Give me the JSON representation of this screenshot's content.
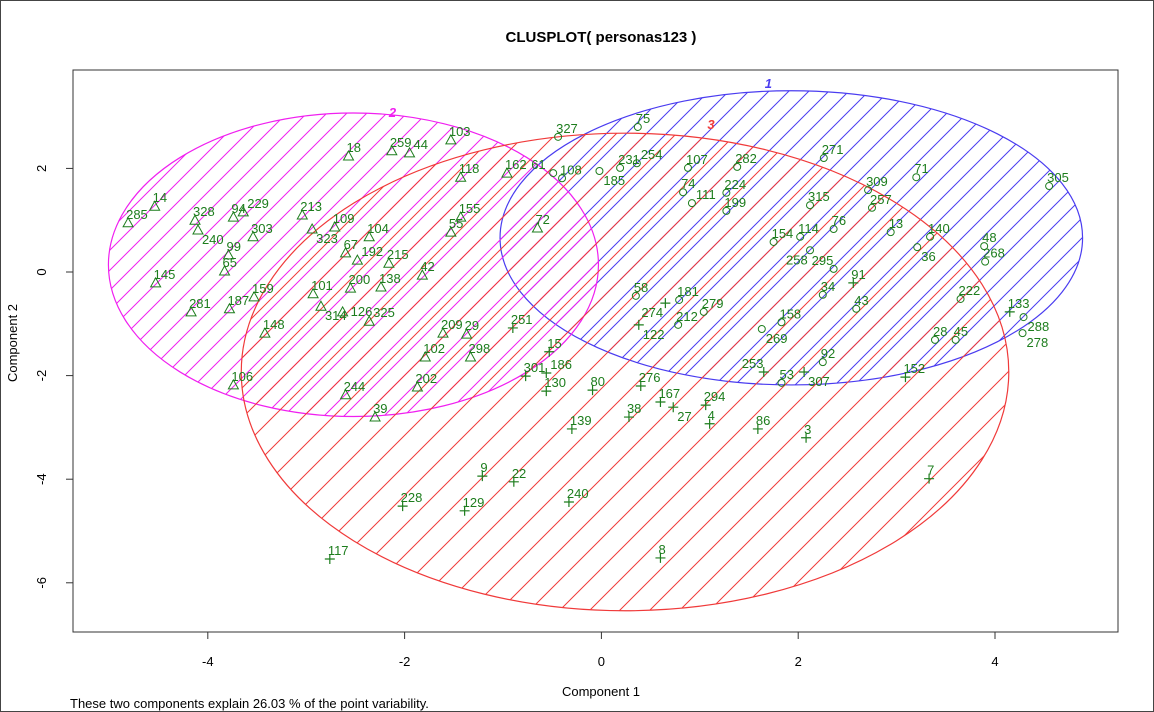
{
  "chart_data": {
    "type": "scatter",
    "title": "CLUSPLOT( personas123 )",
    "xlabel": "Component 1",
    "ylabel": "Component 2",
    "xlim": [
      -5.37,
      5.25
    ],
    "ylim": [
      -6.95,
      3.9
    ],
    "xticks": [
      "-4",
      "-2",
      "0",
      "2",
      "4"
    ],
    "yticks": [
      "-6",
      "-4",
      "-2",
      "0",
      "2"
    ],
    "grid": false,
    "point_color": "#1d7d1d",
    "clusters": [
      {
        "id": "1",
        "color": "#4a3cf0",
        "marker": "circle",
        "ellipse": {
          "cx": 1.93,
          "cy": 0.66,
          "a": 2.96,
          "b": 2.84
        }
      },
      {
        "id": "2",
        "color": "#f020f0",
        "marker": "triangle",
        "ellipse": {
          "cx": -2.52,
          "cy": 0.14,
          "a": 2.49,
          "b": 2.93
        }
      },
      {
        "id": "3",
        "color": "#f03a3a",
        "marker": "plus",
        "ellipse": {
          "cx": 0.24,
          "cy": -1.93,
          "a": 3.9,
          "b": 4.61
        }
      }
    ],
    "points": [
      {
        "label": "285",
        "x": -4.81,
        "y": 0.95,
        "cluster": "2"
      },
      {
        "label": "14",
        "x": -4.54,
        "y": 1.27,
        "cluster": "2"
      },
      {
        "label": "328",
        "x": -4.13,
        "y": 1.0,
        "cluster": "2"
      },
      {
        "label": "240",
        "x": -4.1,
        "y": 0.81,
        "cluster": "2"
      },
      {
        "label": "94",
        "x": -3.74,
        "y": 1.06,
        "cluster": "2"
      },
      {
        "label": "229",
        "x": -3.64,
        "y": 1.16,
        "cluster": "2"
      },
      {
        "label": "303",
        "x": -3.54,
        "y": 0.68,
        "cluster": "2"
      },
      {
        "label": "99",
        "x": -3.79,
        "y": 0.33,
        "cluster": "2"
      },
      {
        "label": "65",
        "x": -3.83,
        "y": 0.02,
        "cluster": "2"
      },
      {
        "label": "213",
        "x": -3.04,
        "y": 1.1,
        "cluster": "2"
      },
      {
        "label": "323",
        "x": -2.94,
        "y": 0.83,
        "cluster": "2"
      },
      {
        "label": "109",
        "x": -2.71,
        "y": 0.87,
        "cluster": "2"
      },
      {
        "label": "18",
        "x": -2.57,
        "y": 2.24,
        "cluster": "2"
      },
      {
        "label": "259",
        "x": -2.13,
        "y": 2.34,
        "cluster": "2"
      },
      {
        "label": "44",
        "x": -1.95,
        "y": 2.3,
        "cluster": "2"
      },
      {
        "label": "103",
        "x": -1.53,
        "y": 2.55,
        "cluster": "2"
      },
      {
        "label": "104",
        "x": -2.36,
        "y": 0.68,
        "cluster": "2"
      },
      {
        "label": "67",
        "x": -2.6,
        "y": 0.37,
        "cluster": "2"
      },
      {
        "label": "192",
        "x": -2.48,
        "y": 0.23,
        "cluster": "2"
      },
      {
        "label": "215",
        "x": -2.16,
        "y": 0.17,
        "cluster": "2"
      },
      {
        "label": "145",
        "x": -4.53,
        "y": -0.21,
        "cluster": "2"
      },
      {
        "label": "281",
        "x": -4.17,
        "y": -0.77,
        "cluster": "2"
      },
      {
        "label": "187",
        "x": -3.78,
        "y": -0.71,
        "cluster": "2"
      },
      {
        "label": "159",
        "x": -3.53,
        "y": -0.48,
        "cluster": "2"
      },
      {
        "label": "148",
        "x": -3.42,
        "y": -1.18,
        "cluster": "2"
      },
      {
        "label": "106",
        "x": -3.74,
        "y": -2.18,
        "cluster": "2"
      },
      {
        "label": "101",
        "x": -2.93,
        "y": -0.42,
        "cluster": "2"
      },
      {
        "label": "314",
        "x": -2.85,
        "y": -0.66,
        "cluster": "2"
      },
      {
        "label": "200",
        "x": -2.55,
        "y": -0.31,
        "cluster": "2"
      },
      {
        "label": "126",
        "x": -2.63,
        "y": -0.77,
        "cluster": "2"
      },
      {
        "label": "138",
        "x": -2.24,
        "y": -0.29,
        "cluster": "2"
      },
      {
        "label": "325",
        "x": -2.36,
        "y": -0.95,
        "cluster": "2"
      },
      {
        "label": "244",
        "x": -2.6,
        "y": -2.37,
        "cluster": "2"
      },
      {
        "label": "39",
        "x": -2.3,
        "y": -2.8,
        "cluster": "2"
      },
      {
        "label": "162",
        "x": -0.96,
        "y": 1.91,
        "cluster": "2"
      },
      {
        "label": "118",
        "x": -1.43,
        "y": 1.83,
        "cluster": "2"
      },
      {
        "label": "155",
        "x": -1.43,
        "y": 1.06,
        "cluster": "2"
      },
      {
        "label": "55",
        "x": -1.53,
        "y": 0.77,
        "cluster": "2"
      },
      {
        "label": "72",
        "x": -0.65,
        "y": 0.85,
        "cluster": "2"
      },
      {
        "label": "42",
        "x": -1.82,
        "y": -0.06,
        "cluster": "2"
      },
      {
        "label": "102",
        "x": -1.79,
        "y": -1.64,
        "cluster": "2"
      },
      {
        "label": "298",
        "x": -1.33,
        "y": -1.64,
        "cluster": "2"
      },
      {
        "label": "202",
        "x": -1.87,
        "y": -2.22,
        "cluster": "2"
      },
      {
        "label": "209",
        "x": -1.61,
        "y": -1.18,
        "cluster": "2"
      },
      {
        "label": "29",
        "x": -1.37,
        "y": -1.2,
        "cluster": "2"
      },
      {
        "label": "327",
        "x": -0.44,
        "y": 2.61,
        "cluster": "1"
      },
      {
        "label": "75",
        "x": 0.37,
        "y": 2.8,
        "cluster": "1"
      },
      {
        "label": "231",
        "x": 0.19,
        "y": 2.01,
        "cluster": "1"
      },
      {
        "label": "185",
        "x": -0.02,
        "y": 1.95,
        "cluster": "1"
      },
      {
        "label": "254",
        "x": 0.36,
        "y": 2.1,
        "cluster": "1"
      },
      {
        "label": "107",
        "x": 0.88,
        "y": 2.01,
        "cluster": "1"
      },
      {
        "label": "74",
        "x": 0.83,
        "y": 1.54,
        "cluster": "1"
      },
      {
        "label": "111",
        "x": 0.92,
        "y": 1.33,
        "cluster": "1"
      },
      {
        "label": "108",
        "x": -0.4,
        "y": 1.81,
        "cluster": "1"
      },
      {
        "label": "61",
        "x": -0.49,
        "y": 1.91,
        "cluster": "1"
      },
      {
        "label": "58",
        "x": 0.35,
        "y": -0.46,
        "cluster": "1"
      },
      {
        "label": "181",
        "x": 0.79,
        "y": -0.54,
        "cluster": "1"
      },
      {
        "label": "212",
        "x": 0.78,
        "y": -1.02,
        "cluster": "1"
      },
      {
        "label": "279",
        "x": 1.04,
        "y": -0.77,
        "cluster": "1"
      },
      {
        "label": "305",
        "x": 4.55,
        "y": 1.66,
        "cluster": "1"
      },
      {
        "label": "71",
        "x": 3.2,
        "y": 1.83,
        "cluster": "1"
      },
      {
        "label": "309",
        "x": 2.71,
        "y": 1.58,
        "cluster": "1"
      },
      {
        "label": "257",
        "x": 2.75,
        "y": 1.24,
        "cluster": "1"
      },
      {
        "label": "282",
        "x": 1.38,
        "y": 2.03,
        "cluster": "1"
      },
      {
        "label": "271",
        "x": 2.26,
        "y": 2.2,
        "cluster": "1"
      },
      {
        "label": "13",
        "x": 2.94,
        "y": 0.77,
        "cluster": "1"
      },
      {
        "label": "140",
        "x": 3.34,
        "y": 0.68,
        "cluster": "1"
      },
      {
        "label": "36",
        "x": 3.21,
        "y": 0.48,
        "cluster": "1"
      },
      {
        "label": "48",
        "x": 3.89,
        "y": 0.5,
        "cluster": "1"
      },
      {
        "label": "268",
        "x": 3.9,
        "y": 0.2,
        "cluster": "1"
      },
      {
        "label": "222",
        "x": 3.65,
        "y": -0.52,
        "cluster": "1"
      },
      {
        "label": "133",
        "x": 4.15,
        "y": -0.77,
        "cluster": "3"
      },
      {
        "label": "288",
        "x": 4.29,
        "y": -0.87,
        "cluster": "1"
      },
      {
        "label": "278",
        "x": 4.28,
        "y": -1.18,
        "cluster": "1"
      },
      {
        "label": "43",
        "x": 2.59,
        "y": -0.71,
        "cluster": "1"
      },
      {
        "label": "34",
        "x": 2.25,
        "y": -0.44,
        "cluster": "1"
      },
      {
        "label": "91",
        "x": 2.56,
        "y": -0.21,
        "cluster": "3"
      },
      {
        "label": "295",
        "x": 2.36,
        "y": 0.06,
        "cluster": "1"
      },
      {
        "label": "158",
        "x": 1.83,
        "y": -0.97,
        "cluster": "1"
      },
      {
        "label": "154",
        "x": 1.75,
        "y": 0.58,
        "cluster": "1"
      },
      {
        "label": "199",
        "x": 1.27,
        "y": 1.18,
        "cluster": "1"
      },
      {
        "label": "224",
        "x": 1.27,
        "y": 1.53,
        "cluster": "1"
      },
      {
        "label": "76",
        "x": 2.36,
        "y": 0.83,
        "cluster": "1"
      },
      {
        "label": "114",
        "x": 2.02,
        "y": 0.68,
        "cluster": "1"
      },
      {
        "label": "315",
        "x": 2.12,
        "y": 1.29,
        "cluster": "1"
      },
      {
        "label": "258",
        "x": 2.12,
        "y": 0.42,
        "cluster": "1"
      },
      {
        "label": "269",
        "x": 1.63,
        "y": -1.1,
        "cluster": "1"
      },
      {
        "label": "28",
        "x": 3.39,
        "y": -1.31,
        "cluster": "1"
      },
      {
        "label": "45",
        "x": 3.6,
        "y": -1.31,
        "cluster": "1"
      },
      {
        "label": "53",
        "x": 1.83,
        "y": -2.14,
        "cluster": "1"
      },
      {
        "label": "92",
        "x": 2.25,
        "y": -1.74,
        "cluster": "1"
      },
      {
        "label": "274",
        "x": 0.65,
        "y": -0.6,
        "cluster": "3"
      },
      {
        "label": "122",
        "x": 0.38,
        "y": -1.02,
        "cluster": "3"
      },
      {
        "label": "251",
        "x": -0.9,
        "y": -1.08,
        "cluster": "3"
      },
      {
        "label": "15",
        "x": -0.53,
        "y": -1.54,
        "cluster": "3"
      },
      {
        "label": "301",
        "x": -0.77,
        "y": -2.01,
        "cluster": "3"
      },
      {
        "label": "186",
        "x": -0.56,
        "y": -1.95,
        "cluster": "3"
      },
      {
        "label": "130",
        "x": -0.56,
        "y": -2.3,
        "cluster": "3"
      },
      {
        "label": "80",
        "x": -0.09,
        "y": -2.28,
        "cluster": "3"
      },
      {
        "label": "276",
        "x": 0.4,
        "y": -2.2,
        "cluster": "3"
      },
      {
        "label": "167",
        "x": 0.6,
        "y": -2.51,
        "cluster": "3"
      },
      {
        "label": "27",
        "x": 0.73,
        "y": -2.61,
        "cluster": "3"
      },
      {
        "label": "38",
        "x": 0.28,
        "y": -2.8,
        "cluster": "3"
      },
      {
        "label": "139",
        "x": -0.3,
        "y": -3.03,
        "cluster": "3"
      },
      {
        "label": "294",
        "x": 1.06,
        "y": -2.57,
        "cluster": "3"
      },
      {
        "label": "4",
        "x": 1.1,
        "y": -2.93,
        "cluster": "3"
      },
      {
        "label": "86",
        "x": 1.59,
        "y": -3.03,
        "cluster": "3"
      },
      {
        "label": "3",
        "x": 2.08,
        "y": -3.2,
        "cluster": "3"
      },
      {
        "label": "7",
        "x": 3.33,
        "y": -3.99,
        "cluster": "3"
      },
      {
        "label": "9",
        "x": -1.21,
        "y": -3.94,
        "cluster": "3"
      },
      {
        "label": "22",
        "x": -0.89,
        "y": -4.05,
        "cluster": "3"
      },
      {
        "label": "228",
        "x": -2.02,
        "y": -4.52,
        "cluster": "3"
      },
      {
        "label": "129",
        "x": -1.39,
        "y": -4.61,
        "cluster": "3"
      },
      {
        "label": "240",
        "x": -0.33,
        "y": -4.44,
        "cluster": "3"
      },
      {
        "label": "117",
        "x": -2.76,
        "y": -5.54,
        "cluster": "3"
      },
      {
        "label": "8",
        "x": 0.6,
        "y": -5.52,
        "cluster": "3"
      },
      {
        "label": "253",
        "x": 1.65,
        "y": -1.93,
        "cluster": "3"
      },
      {
        "label": "307",
        "x": 2.06,
        "y": -1.93,
        "cluster": "3"
      },
      {
        "label": "152",
        "x": 3.09,
        "y": -2.03,
        "cluster": "3"
      }
    ],
    "footnote": "These two components explain 26.03 % of the point variability."
  }
}
